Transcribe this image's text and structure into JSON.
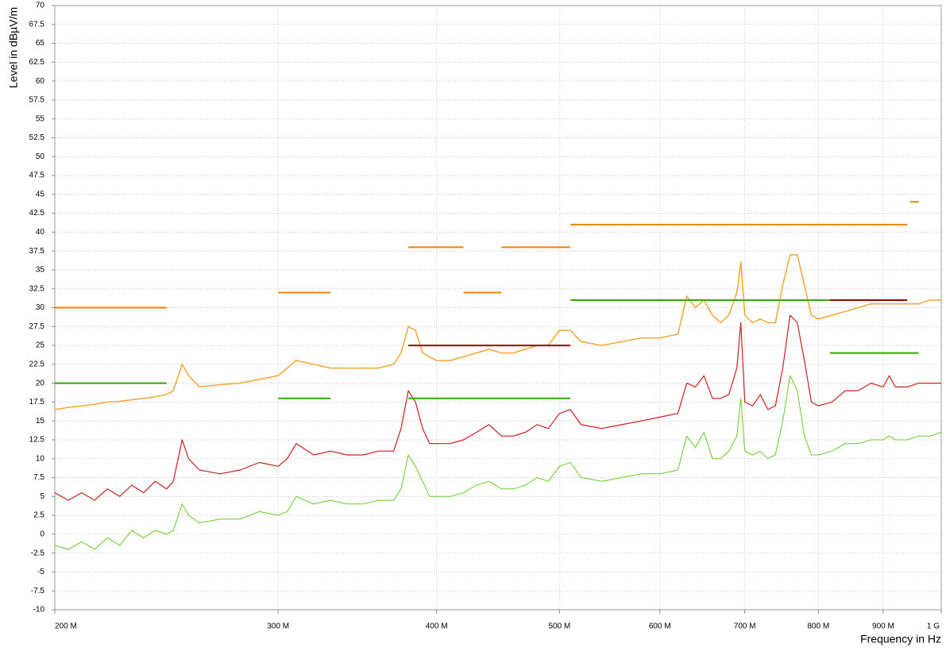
{
  "chart_data": {
    "type": "line",
    "x_label": "Frequency in Hz",
    "y_label": "Level in dBµV/m",
    "xscale": "log",
    "grid": true,
    "xlim": [
      200000000,
      1000000000
    ],
    "ylim": [
      -10,
      70
    ],
    "xticks": [
      {
        "value": 200000000,
        "label": "200 M"
      },
      {
        "value": 300000000,
        "label": "300 M"
      },
      {
        "value": 400000000,
        "label": "400 M"
      },
      {
        "value": 500000000,
        "label": "500 M"
      },
      {
        "value": 600000000,
        "label": "600 M"
      },
      {
        "value": 700000000,
        "label": "700 M"
      },
      {
        "value": 800000000,
        "label": "800 M"
      },
      {
        "value": 900000000,
        "label": "900 M"
      },
      {
        "value": 1000000000,
        "label": "1 G"
      }
    ],
    "yticks": [
      -10,
      -7.5,
      -5,
      -2.5,
      0,
      2.5,
      5,
      7.5,
      10,
      12.5,
      15,
      17.5,
      20,
      22.5,
      25,
      27.5,
      30,
      32.5,
      35,
      37.5,
      40,
      42.5,
      45,
      47.5,
      50,
      52.5,
      55,
      57.5,
      60,
      62.5,
      65,
      67.5,
      70
    ],
    "x": [
      200000000,
      205000000,
      210000000,
      215000000,
      220000000,
      225000000,
      230000000,
      235000000,
      240000000,
      245000000,
      248000000,
      252000000,
      255000000,
      260000000,
      270000000,
      280000000,
      290000000,
      300000000,
      305000000,
      310000000,
      320000000,
      330000000,
      340000000,
      350000000,
      360000000,
      370000000,
      375000000,
      380000000,
      385000000,
      390000000,
      395000000,
      400000000,
      410000000,
      420000000,
      430000000,
      440000000,
      450000000,
      460000000,
      470000000,
      480000000,
      490000000,
      500000000,
      510000000,
      520000000,
      540000000,
      560000000,
      580000000,
      600000000,
      620000000,
      630000000,
      640000000,
      650000000,
      660000000,
      670000000,
      680000000,
      690000000,
      695000000,
      700000000,
      710000000,
      720000000,
      730000000,
      740000000,
      750000000,
      760000000,
      770000000,
      780000000,
      790000000,
      800000000,
      820000000,
      840000000,
      860000000,
      880000000,
      900000000,
      910000000,
      920000000,
      940000000,
      960000000,
      980000000,
      1000000000
    ],
    "series": [
      {
        "color": "#f7a530",
        "width": 1.5,
        "values": [
          16.5,
          16.8,
          17,
          17.2,
          17.5,
          17.6,
          17.8,
          18,
          18.2,
          18.5,
          19,
          22.5,
          21,
          19.5,
          19.8,
          20,
          20.5,
          21,
          22,
          23,
          22.5,
          22,
          22,
          22,
          22,
          22.5,
          24,
          27.5,
          27,
          24,
          23.5,
          23,
          23,
          23.5,
          24,
          24.5,
          24,
          24,
          24.5,
          25,
          25,
          27,
          27,
          25.5,
          25,
          25.5,
          26,
          26,
          26.5,
          31.5,
          30,
          31,
          29,
          28,
          29,
          32,
          36,
          29,
          28,
          28.5,
          28,
          28,
          33,
          37,
          37,
          33,
          29,
          28.5,
          29,
          29.5,
          30,
          30.5,
          30.5,
          30.5,
          30.5,
          30.5,
          30.5,
          31,
          31
        ]
      },
      {
        "color": "#cc1f1f",
        "width": 1.2,
        "values": [
          5.5,
          4.5,
          5.5,
          4.5,
          6,
          5,
          6.5,
          5.5,
          7,
          6,
          7,
          12.5,
          10,
          8.5,
          8,
          8.5,
          9.5,
          9,
          10,
          12,
          10.5,
          11,
          10.5,
          10.5,
          11,
          11,
          14,
          19,
          17.5,
          14,
          12,
          12,
          12,
          12.5,
          13.5,
          14.5,
          13,
          13,
          13.5,
          14.5,
          14,
          16,
          16.5,
          14.5,
          14,
          14.5,
          15,
          15.5,
          16,
          20,
          19.5,
          21,
          18,
          18,
          18.5,
          22,
          28,
          17.5,
          17,
          18.5,
          16.5,
          17,
          22,
          29,
          28,
          23,
          17.5,
          17,
          17.5,
          19,
          19,
          20,
          19.5,
          21,
          19.5,
          19.5,
          20,
          20,
          20
        ]
      },
      {
        "color": "#66cc22",
        "width": 1,
        "values": [
          -1.5,
          -2,
          -1,
          -2,
          -0.5,
          -1.5,
          0.5,
          -0.5,
          0.5,
          0,
          0.5,
          4,
          2.5,
          1.5,
          2,
          2,
          3,
          2.5,
          3,
          5,
          4,
          4.5,
          4,
          4,
          4.5,
          4.5,
          6,
          10.5,
          9,
          7,
          5,
          5,
          5,
          5.5,
          6.5,
          7,
          6,
          6,
          6.5,
          7.5,
          7,
          9,
          9.5,
          7.5,
          7,
          7.5,
          8,
          8,
          8.5,
          13,
          11.5,
          13.5,
          10,
          10,
          11,
          13,
          18,
          11,
          10.5,
          11,
          10,
          10.5,
          15,
          21,
          19,
          13,
          10.5,
          10.5,
          11,
          12,
          12,
          12.5,
          12.5,
          13,
          12.5,
          12.5,
          13,
          13,
          13.5
        ]
      },
      {
        "color": "#f08000",
        "width": 2,
        "x": [
          200000000,
          245000000,
          245000000,
          300000000,
          330000000,
          330000000,
          380000000,
          420000000,
          420000000,
          420000000,
          450000000,
          450000000,
          450000000,
          510000000,
          510000000,
          510000000,
          940000000,
          940000000,
          945000000,
          960000000
        ],
        "values": [
          30,
          30,
          null,
          32,
          32,
          null,
          38,
          38,
          null,
          32,
          32,
          null,
          38,
          38,
          null,
          41,
          41,
          null,
          44,
          44
        ]
      },
      {
        "color": "#33aa00",
        "width": 2,
        "x": [
          200000000,
          245000000,
          245000000,
          300000000,
          330000000,
          330000000,
          380000000,
          510000000,
          510000000,
          510000000,
          817000000,
          817000000,
          817000000,
          960000000
        ],
        "values": [
          20,
          20,
          null,
          18,
          18,
          null,
          18,
          18,
          null,
          31,
          31,
          null,
          24,
          24
        ]
      },
      {
        "color": "#990000",
        "width": 2,
        "x": [
          380000000,
          510000000,
          510000000,
          817000000,
          940000000
        ],
        "values": [
          25,
          25,
          null,
          31,
          31
        ]
      }
    ]
  }
}
